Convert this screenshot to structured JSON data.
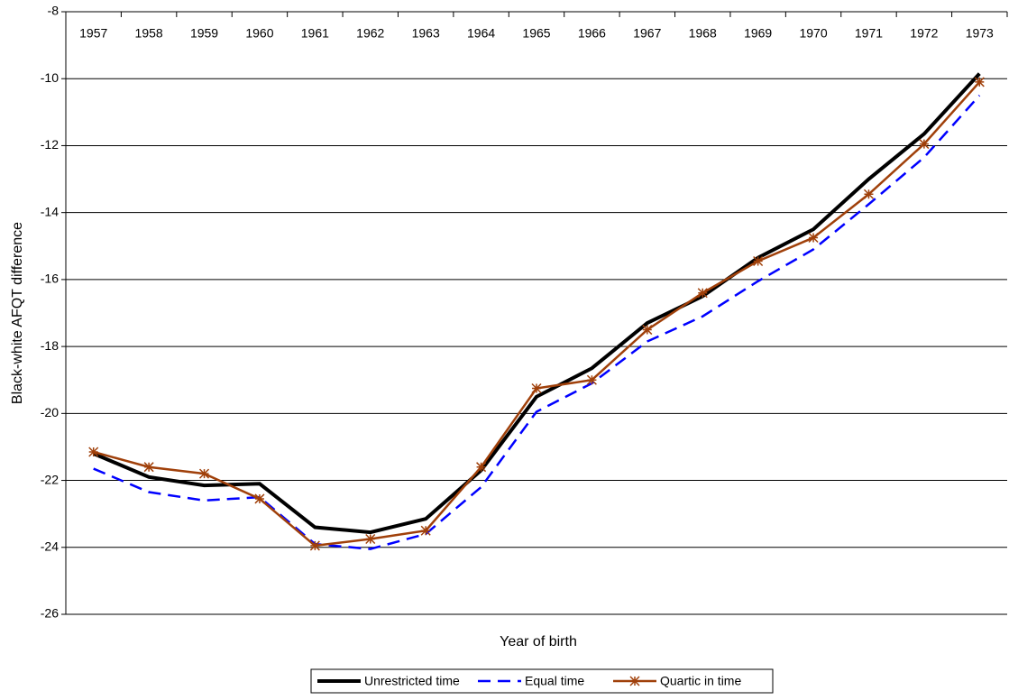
{
  "chart_data": {
    "type": "line",
    "y_label": "Black-white AFQT difference",
    "x_label": "Year of birth",
    "categories": [
      "1957",
      "1958",
      "1959",
      "1960",
      "1961",
      "1962",
      "1963",
      "1964",
      "1965",
      "1966",
      "1967",
      "1968",
      "1969",
      "1970",
      "1971",
      "1972",
      "1973"
    ],
    "ylim": [
      -26,
      -8
    ],
    "yticks": [
      -26,
      -24,
      -22,
      -20,
      -18,
      -16,
      -14,
      -12,
      -10,
      -8
    ],
    "grid": true,
    "legend": "bottom",
    "series": [
      {
        "name": "Unrestricted time",
        "color": "#000000",
        "style": "solid",
        "values": [
          -21.2,
          -21.9,
          -22.15,
          -22.1,
          -23.4,
          -23.55,
          -23.15,
          -21.7,
          -19.5,
          -18.65,
          -17.3,
          -16.5,
          -15.35,
          -14.5,
          -13.0,
          -11.65,
          -9.85
        ]
      },
      {
        "name": "Equal time",
        "color": "#0000ff",
        "style": "dashed",
        "values": [
          -21.65,
          -22.35,
          -22.6,
          -22.5,
          -23.9,
          -24.05,
          -23.6,
          -22.2,
          -19.95,
          -19.1,
          -17.85,
          -17.1,
          -16.05,
          -15.1,
          -13.75,
          -12.35,
          -10.5
        ]
      },
      {
        "name": "Quartic in time",
        "color": "#a0400a",
        "style": "solid-star",
        "values": [
          -21.15,
          -21.6,
          -21.8,
          -22.55,
          -23.95,
          -23.75,
          -23.5,
          -21.6,
          -19.25,
          -19.0,
          -17.5,
          -16.4,
          -15.45,
          -14.75,
          -13.45,
          -11.95,
          -10.1
        ]
      }
    ]
  }
}
